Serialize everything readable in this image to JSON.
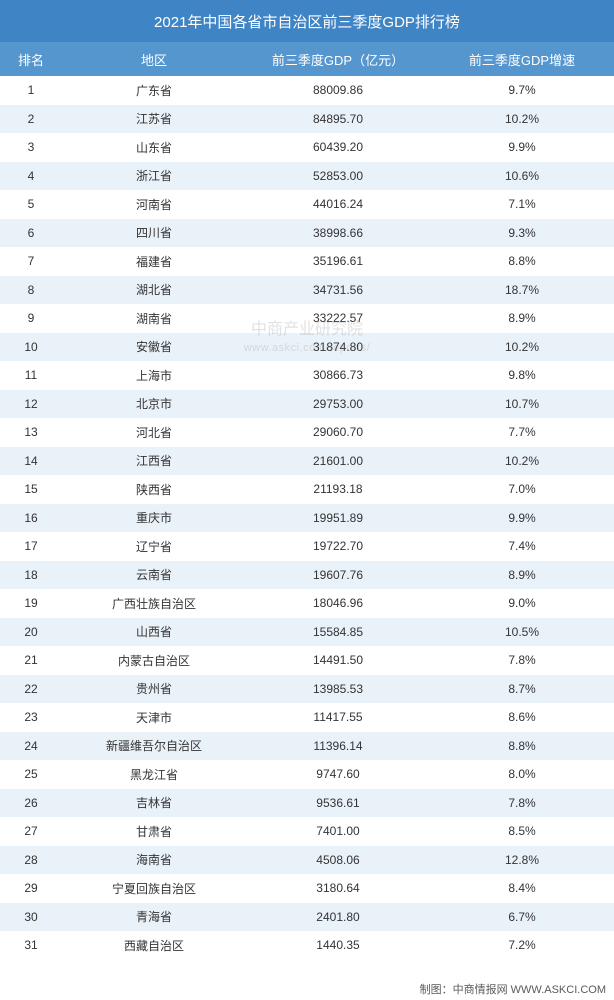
{
  "title": "2021年中国各省市自治区前三季度GDP排行榜",
  "columns": {
    "rank": "排名",
    "region": "地区",
    "gdp": "前三季度GDP（亿元）",
    "growth": "前三季度GDP增速"
  },
  "colors": {
    "title_bg": "#3f84c4",
    "header_bg": "#5596cf",
    "row_odd_bg": "#ffffff",
    "row_even_bg": "#eaf2f9",
    "text_color": "#333333",
    "footer_color": "#5a5a5a"
  },
  "font_sizes": {
    "title": 15,
    "header": 13,
    "body": 12,
    "footer": 11
  },
  "rows": [
    {
      "rank": "1",
      "region": "广东省",
      "gdp": "88009.86",
      "growth": "9.7%"
    },
    {
      "rank": "2",
      "region": "江苏省",
      "gdp": "84895.70",
      "growth": "10.2%"
    },
    {
      "rank": "3",
      "region": "山东省",
      "gdp": "60439.20",
      "growth": "9.9%"
    },
    {
      "rank": "4",
      "region": "浙江省",
      "gdp": "52853.00",
      "growth": "10.6%"
    },
    {
      "rank": "5",
      "region": "河南省",
      "gdp": "44016.24",
      "growth": "7.1%"
    },
    {
      "rank": "6",
      "region": "四川省",
      "gdp": "38998.66",
      "growth": "9.3%"
    },
    {
      "rank": "7",
      "region": "福建省",
      "gdp": "35196.61",
      "growth": "8.8%"
    },
    {
      "rank": "8",
      "region": "湖北省",
      "gdp": "34731.56",
      "growth": "18.7%"
    },
    {
      "rank": "9",
      "region": "湖南省",
      "gdp": "33222.57",
      "growth": "8.9%"
    },
    {
      "rank": "10",
      "region": "安徽省",
      "gdp": "31874.80",
      "growth": "10.2%"
    },
    {
      "rank": "11",
      "region": "上海市",
      "gdp": "30866.73",
      "growth": "9.8%"
    },
    {
      "rank": "12",
      "region": "北京市",
      "gdp": "29753.00",
      "growth": "10.7%"
    },
    {
      "rank": "13",
      "region": "河北省",
      "gdp": "29060.70",
      "growth": "7.7%"
    },
    {
      "rank": "14",
      "region": "江西省",
      "gdp": "21601.00",
      "growth": "10.2%"
    },
    {
      "rank": "15",
      "region": "陕西省",
      "gdp": "21193.18",
      "growth": "7.0%"
    },
    {
      "rank": "16",
      "region": "重庆市",
      "gdp": "19951.89",
      "growth": "9.9%"
    },
    {
      "rank": "17",
      "region": "辽宁省",
      "gdp": "19722.70",
      "growth": "7.4%"
    },
    {
      "rank": "18",
      "region": "云南省",
      "gdp": "19607.76",
      "growth": "8.9%"
    },
    {
      "rank": "19",
      "region": "广西壮族自治区",
      "gdp": "18046.96",
      "growth": "9.0%"
    },
    {
      "rank": "20",
      "region": "山西省",
      "gdp": "15584.85",
      "growth": "10.5%"
    },
    {
      "rank": "21",
      "region": "内蒙古自治区",
      "gdp": "14491.50",
      "growth": "7.8%"
    },
    {
      "rank": "22",
      "region": "贵州省",
      "gdp": "13985.53",
      "growth": "8.7%"
    },
    {
      "rank": "23",
      "region": "天津市",
      "gdp": "11417.55",
      "growth": "8.6%"
    },
    {
      "rank": "24",
      "region": "新疆维吾尔自治区",
      "gdp": "11396.14",
      "growth": "8.8%"
    },
    {
      "rank": "25",
      "region": "黑龙江省",
      "gdp": "9747.60",
      "growth": "8.0%"
    },
    {
      "rank": "26",
      "region": "吉林省",
      "gdp": "9536.61",
      "growth": "7.8%"
    },
    {
      "rank": "27",
      "region": "甘肃省",
      "gdp": "7401.00",
      "growth": "8.5%"
    },
    {
      "rank": "28",
      "region": "海南省",
      "gdp": "4508.06",
      "growth": "12.8%"
    },
    {
      "rank": "29",
      "region": "宁夏回族自治区",
      "gdp": "3180.64",
      "growth": "8.4%"
    },
    {
      "rank": "30",
      "region": "青海省",
      "gdp": "2401.80",
      "growth": "6.7%"
    },
    {
      "rank": "31",
      "region": "西藏自治区",
      "gdp": "1440.35",
      "growth": "7.2%"
    }
  ],
  "watermark": {
    "line1": "中商产业研究院",
    "line2": "www.askci.com/reports/"
  },
  "footer": "制图：中商情报网  WWW.ASKCI.COM"
}
